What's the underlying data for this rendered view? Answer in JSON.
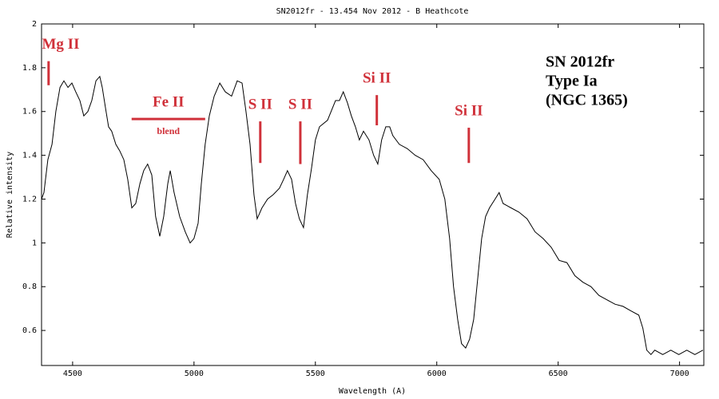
{
  "chart_data": {
    "type": "line",
    "title": "SN2012fr - 13.454 Nov 2012 - B Heathcote",
    "xlabel": "Wavelength (A)",
    "ylabel": "Relative intensity",
    "xlim": [
      4372,
      7100
    ],
    "ylim": [
      0.44,
      2
    ],
    "xticks": [
      4500,
      5000,
      5500,
      6000,
      6500,
      7000
    ],
    "yticks": [
      0.6,
      0.8,
      1,
      1.2,
      1.4,
      1.6,
      1.8,
      2
    ],
    "grid": false,
    "x": [
      4372,
      4382,
      4398,
      4415,
      4431,
      4448,
      4464,
      4481,
      4497,
      4513,
      4530,
      4546,
      4563,
      4579,
      4596,
      4612,
      4622,
      4635,
      4648,
      4661,
      4678,
      4694,
      4711,
      4727,
      4744,
      4760,
      4777,
      4793,
      4809,
      4826,
      4842,
      4859,
      4875,
      4892,
      4902,
      4918,
      4941,
      4964,
      4984,
      5000,
      5017,
      5030,
      5046,
      5063,
      5083,
      5106,
      5129,
      5155,
      5178,
      5198,
      5214,
      5231,
      5247,
      5260,
      5280,
      5303,
      5326,
      5352,
      5369,
      5385,
      5402,
      5418,
      5434,
      5451,
      5467,
      5484,
      5500,
      5517,
      5550,
      5583,
      5599,
      5615,
      5632,
      5648,
      5665,
      5681,
      5698,
      5721,
      5740,
      5757,
      5773,
      5790,
      5806,
      5819,
      5846,
      5879,
      5911,
      5944,
      5977,
      6010,
      6033,
      6053,
      6069,
      6086,
      6102,
      6119,
      6135,
      6152,
      6168,
      6185,
      6201,
      6217,
      6240,
      6257,
      6273,
      6306,
      6339,
      6372,
      6405,
      6438,
      6471,
      6504,
      6536,
      6569,
      6602,
      6635,
      6668,
      6701,
      6734,
      6767,
      6799,
      6832,
      6849,
      6865,
      6882,
      6898,
      6931,
      6964,
      6997,
      7030,
      7063,
      7096
    ],
    "series": [
      {
        "color": "#000000",
        "values": [
          1.2,
          1.23,
          1.38,
          1.45,
          1.6,
          1.71,
          1.74,
          1.71,
          1.73,
          1.69,
          1.65,
          1.58,
          1.6,
          1.65,
          1.74,
          1.76,
          1.71,
          1.62,
          1.53,
          1.51,
          1.45,
          1.42,
          1.38,
          1.29,
          1.16,
          1.18,
          1.27,
          1.33,
          1.36,
          1.31,
          1.12,
          1.03,
          1.12,
          1.27,
          1.33,
          1.23,
          1.12,
          1.05,
          1.0,
          1.02,
          1.09,
          1.27,
          1.45,
          1.58,
          1.67,
          1.73,
          1.69,
          1.67,
          1.74,
          1.73,
          1.6,
          1.45,
          1.22,
          1.11,
          1.16,
          1.2,
          1.22,
          1.25,
          1.29,
          1.33,
          1.29,
          1.18,
          1.11,
          1.07,
          1.22,
          1.34,
          1.47,
          1.53,
          1.56,
          1.65,
          1.65,
          1.69,
          1.64,
          1.58,
          1.53,
          1.47,
          1.51,
          1.47,
          1.4,
          1.36,
          1.47,
          1.53,
          1.53,
          1.49,
          1.45,
          1.43,
          1.4,
          1.38,
          1.33,
          1.29,
          1.2,
          1.02,
          0.8,
          0.65,
          0.54,
          0.52,
          0.56,
          0.65,
          0.83,
          1.02,
          1.12,
          1.16,
          1.2,
          1.23,
          1.18,
          1.16,
          1.14,
          1.11,
          1.05,
          1.02,
          0.98,
          0.92,
          0.91,
          0.85,
          0.82,
          0.8,
          0.76,
          0.74,
          0.72,
          0.71,
          0.69,
          0.67,
          0.61,
          0.51,
          0.49,
          0.51,
          0.49,
          0.51,
          0.49,
          0.51,
          0.49,
          0.51
        ]
      }
    ],
    "annotation_color": "#d0313a",
    "annotations": [
      {
        "text": "Mg II",
        "x": 4401,
        "y": [
          1.72,
          1.83
        ]
      },
      {
        "text": "Fe II",
        "sublabel": "blend",
        "x": [
          4743,
          5046
        ],
        "y": 1.566
      },
      {
        "text": "S II",
        "x": 5273,
        "y": [
          1.365,
          1.555
        ]
      },
      {
        "text": "S II",
        "x": 5438,
        "y": [
          1.36,
          1.555
        ]
      },
      {
        "text": "Si II",
        "x": 5753,
        "y": [
          1.537,
          1.675
        ]
      },
      {
        "text": "Si II",
        "x": 6132,
        "y": [
          1.365,
          1.526
        ]
      }
    ],
    "textbox": [
      "SN 2012fr",
      "Type Ia",
      "(NGC 1365)"
    ]
  }
}
